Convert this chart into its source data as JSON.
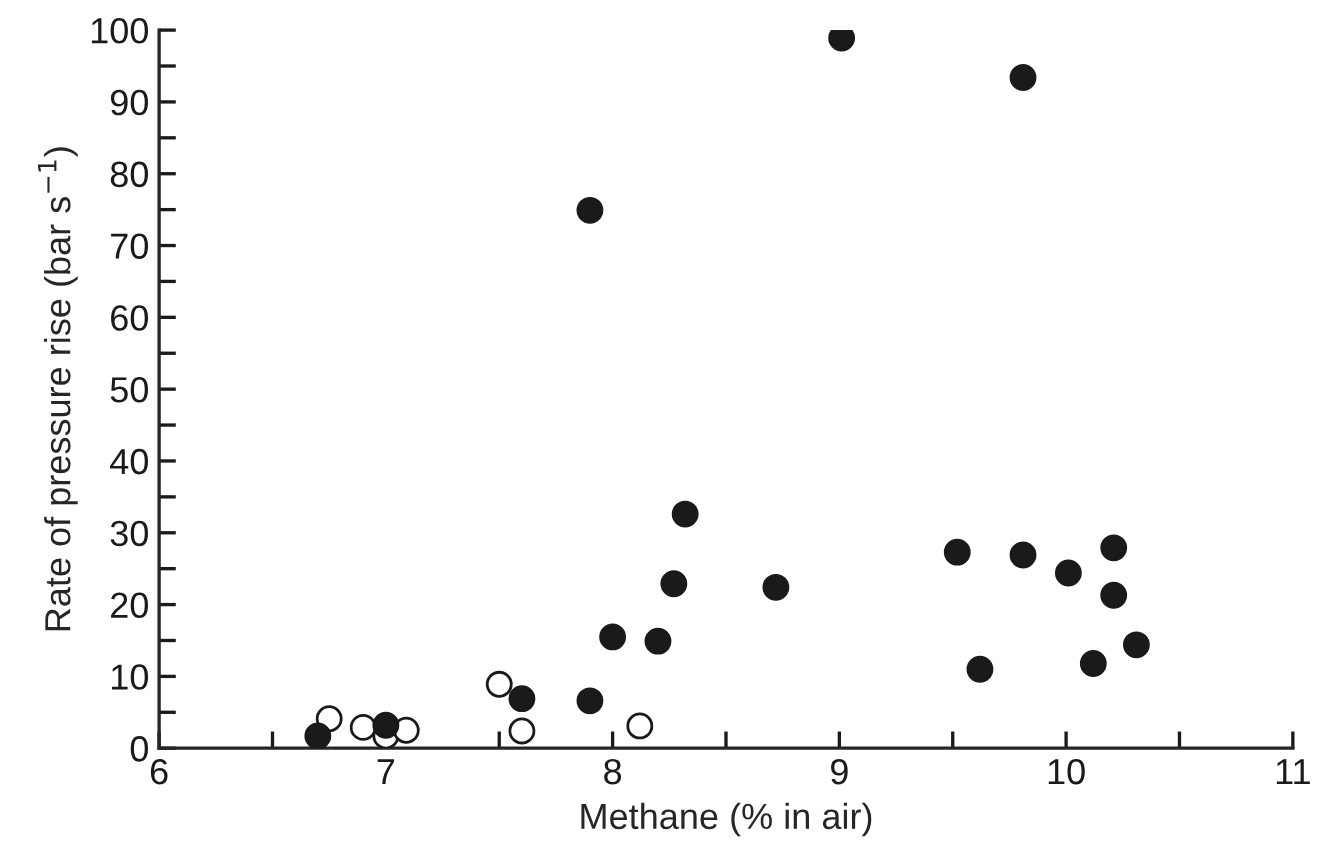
{
  "chart_data": {
    "type": "scatter",
    "xlabel": "Methane (% in air)",
    "ylabel": "Rate of pressure rise (bar s$^{−1}$)",
    "xlim": [
      6,
      11
    ],
    "ylim": [
      0,
      100
    ],
    "xticks": [
      6,
      {
        "value": 6.5,
        "label": null
      },
      7,
      {
        "value": 7.5,
        "label": null
      },
      8,
      {
        "value": 8.5,
        "label": null
      },
      9,
      {
        "value": 9.5,
        "label": null
      },
      10,
      {
        "value": 10.5,
        "label": null
      },
      11
    ],
    "yticks": [
      0,
      {
        "value": 5,
        "label": null
      },
      10,
      {
        "value": 15,
        "label": null
      },
      20,
      {
        "value": 25,
        "label": null
      },
      30,
      {
        "value": 35,
        "label": null
      },
      40,
      {
        "value": 45,
        "label": null
      },
      50,
      {
        "value": 55,
        "label": null
      },
      60,
      {
        "value": 65,
        "label": null
      },
      70,
      {
        "value": 75,
        "label": null
      },
      80,
      {
        "value": 85,
        "label": null
      },
      90,
      {
        "value": 95,
        "label": null
      },
      100
    ],
    "marker": "circle",
    "grid": false,
    "legend": false,
    "series": [
      {
        "color": "#ffffff",
        "x": [
          6.75,
          6.9,
          7.0,
          7.09,
          7.5,
          7.6,
          8.12
        ],
        "values": [
          4.1,
          2.9,
          1.7,
          2.5,
          8.9,
          2.4,
          3.1
        ]
      },
      {
        "color": "#1a1a1a",
        "x": [
          6.7,
          7.0,
          7.6,
          7.9,
          8.0,
          8.2,
          8.27,
          8.32,
          8.72,
          9.52,
          9.62,
          9.81,
          10.01,
          10.21,
          10.21,
          10.12,
          10.31,
          7.9,
          9.01,
          9.81
        ],
        "values": [
          1.7,
          3.2,
          6.9,
          6.6,
          15.5,
          14.9,
          22.9,
          32.6,
          22.4,
          27.3,
          11.0,
          26.9,
          24.4,
          27.9,
          21.3,
          11.8,
          14.4,
          74.9,
          98.9,
          93.4
        ]
      }
    ]
  }
}
